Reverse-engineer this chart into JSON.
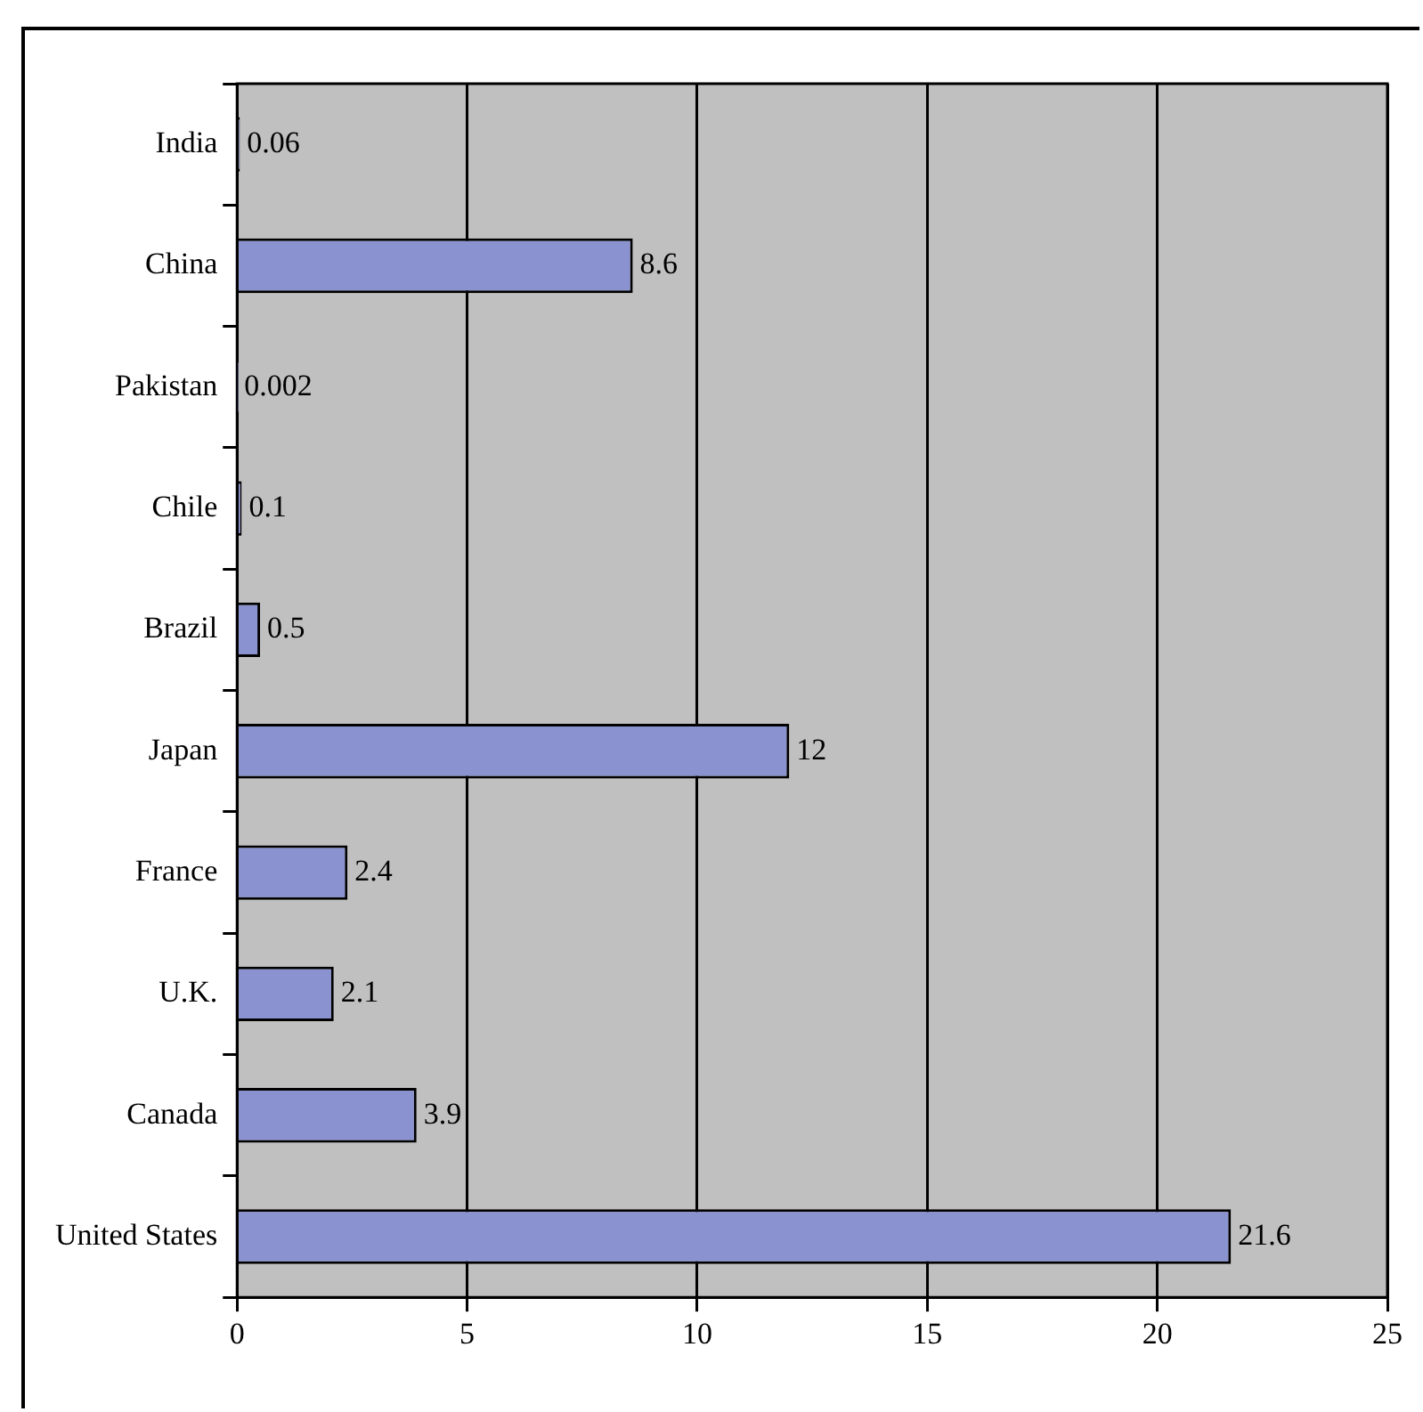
{
  "chart_data": {
    "type": "bar",
    "orientation": "horizontal",
    "categories": [
      "India",
      "China",
      "Pakistan",
      "Chile",
      "Brazil",
      "Japan",
      "France",
      "U.K.",
      "Canada",
      "United States"
    ],
    "values": [
      0.06,
      8.6,
      0.002,
      0.1,
      0.5,
      12,
      2.4,
      2.1,
      3.9,
      21.6
    ],
    "color": "#8a93d0",
    "xlim": [
      0,
      25
    ],
    "xticks": [
      0,
      5,
      10,
      15,
      20,
      25
    ],
    "grid": "x",
    "legend": false,
    "data_labels": true
  }
}
